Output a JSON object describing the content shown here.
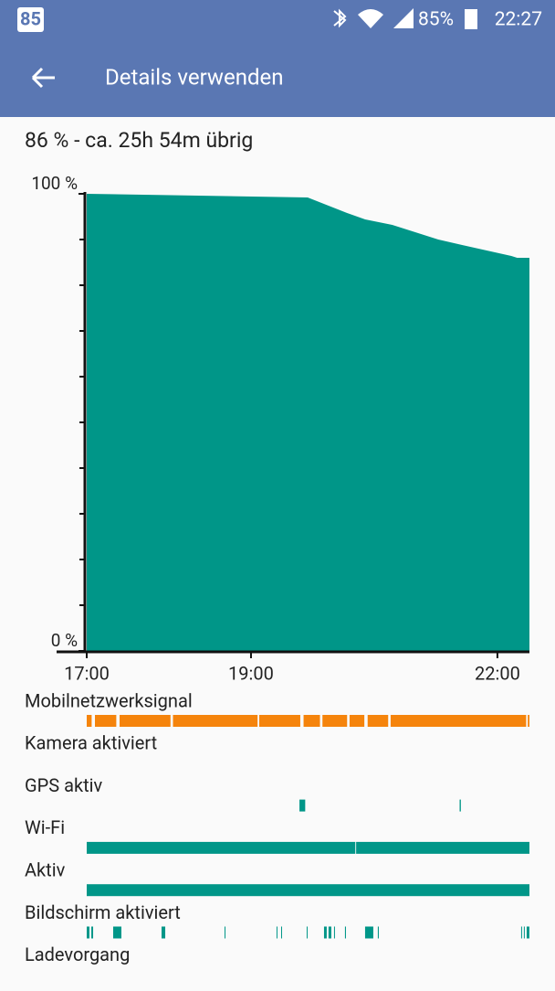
{
  "status_bar": {
    "notification": "85",
    "battery": "85%",
    "time": "22:27"
  },
  "header": {
    "title": "Details verwenden"
  },
  "summary": "86 % - ca. 25h 54m übrig",
  "chart_data": {
    "type": "area",
    "x": [
      17,
      19.69,
      20.17,
      20.39,
      20.72,
      21.28,
      21.72,
      22.17,
      22.24,
      22.39
    ],
    "values": [
      100,
      99.2,
      95.8,
      94.4,
      93.2,
      90,
      88.2,
      86.4,
      86,
      86
    ],
    "color": "#009688",
    "xlim": [
      17,
      22.39
    ],
    "ylim": [
      0,
      100
    ],
    "xticks": [
      {
        "value": 17,
        "label": "17:00"
      },
      {
        "value": 19,
        "label": "19:00"
      },
      {
        "value": 22,
        "label": "22:00"
      }
    ],
    "yticks": [
      {
        "value": 0,
        "label": "0 %"
      },
      {
        "value": 100,
        "label": "100 %"
      }
    ],
    "yminor_ticks": [
      10,
      20,
      30,
      40,
      50,
      60,
      70,
      80,
      90
    ]
  },
  "events": [
    {
      "label": "Mobilnetzwerksignal",
      "color": "#f5840c",
      "segments": [
        [
          17,
          17.06
        ],
        [
          17.1,
          17.36
        ],
        [
          17.4,
          18.02
        ],
        [
          18.05,
          19.08
        ],
        [
          19.1,
          19.6
        ],
        [
          19.64,
          19.84
        ],
        [
          19.87,
          20.17
        ],
        [
          20.2,
          20.38
        ],
        [
          20.42,
          20.67
        ],
        [
          20.7,
          22.35
        ],
        [
          22.37,
          22.39
        ]
      ]
    },
    {
      "label": "Kamera aktiviert",
      "segments": []
    },
    {
      "label": "GPS aktiv",
      "color": "#009688",
      "segments": [
        [
          19.59,
          19.66
        ],
        [
          21.54,
          21.555
        ]
      ]
    },
    {
      "label": "Wi-Fi",
      "color": "#009688",
      "segments": [
        [
          17,
          20.27
        ],
        [
          20.28,
          22.39
        ]
      ]
    },
    {
      "label": "Aktiv",
      "color": "#009688",
      "segments": [
        [
          17,
          22.39
        ]
      ]
    },
    {
      "label": "Bildschirm aktiviert",
      "color": "#009688",
      "segments": [
        [
          17,
          17.033
        ],
        [
          17.056,
          17.078
        ],
        [
          17.322,
          17.422
        ],
        [
          17.911,
          17.956
        ],
        [
          18.678,
          18.689
        ],
        [
          19.311,
          19.322
        ],
        [
          19.367,
          19.378
        ],
        [
          19.678,
          19.689
        ],
        [
          19.889,
          19.922
        ],
        [
          19.944,
          19.978
        ],
        [
          20.011,
          20.022
        ],
        [
          20.144,
          20.156
        ],
        [
          20.389,
          20.489
        ],
        [
          20.544,
          20.556
        ],
        [
          22.289,
          22.3
        ],
        [
          22.322,
          22.333
        ],
        [
          22.356,
          22.389
        ]
      ]
    },
    {
      "label": "Ladevorgang",
      "segments": []
    }
  ]
}
